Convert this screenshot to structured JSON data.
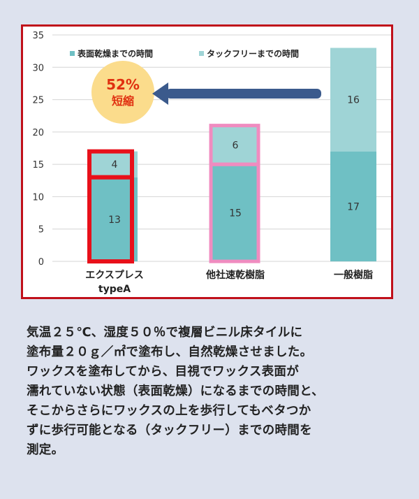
{
  "chart_data": {
    "type": "bar",
    "stacked": true,
    "categories": [
      "エクスプレス\ntypeA",
      "他社速乾樹脂",
      "一般樹脂"
    ],
    "series": [
      {
        "name": "表面乾燥までの時間",
        "values": [
          13,
          15,
          17
        ],
        "color": "#6fc0c4"
      },
      {
        "name": "タックフリーまでの時間",
        "values": [
          4,
          6,
          16
        ],
        "color": "#9fd4d6"
      }
    ],
    "ylim": [
      0,
      35
    ],
    "yticks": [
      0,
      5,
      10,
      15,
      20,
      25,
      30,
      35
    ],
    "grid": true,
    "legend_position": "top-left",
    "highlight_colors": [
      "#e8101a",
      "#f08cc0"
    ],
    "annotation": {
      "percent": "52%",
      "text": "短縮",
      "color": "#e03010",
      "badge_color": "#fbdc8c",
      "arrow_color": "#3b5a8c"
    }
  },
  "description_lines": [
    "気温２５℃、湿度５０％で複層ビニル床タイルに",
    "塗布量２０ｇ／㎡で塗布し、自然乾燥させました。",
    "ワックスを塗布してから、目視でワックス表面が",
    "濡れていない状態（表面乾燥）になるまでの時間と、",
    "そこからさらにワックスの上を歩行してもベタつか",
    "ずに歩行可能となる（タックフリー）までの時間を",
    "測定。"
  ]
}
